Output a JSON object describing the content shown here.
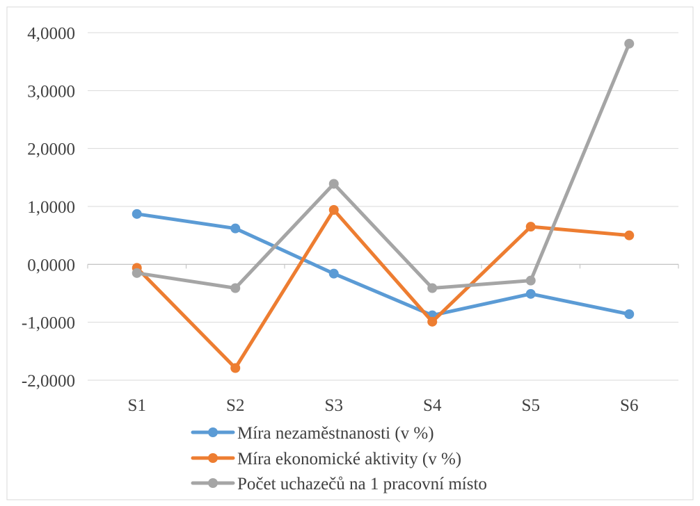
{
  "chart_data": {
    "type": "line",
    "categories": [
      "S1",
      "S2",
      "S3",
      "S4",
      "S5",
      "S6"
    ],
    "series": [
      {
        "name": "Míra nezaměstnanosti (v %)",
        "color": "#5B9BD5",
        "values": [
          0.87,
          0.62,
          -0.16,
          -0.88,
          -0.51,
          -0.86
        ]
      },
      {
        "name": "Míra ekonomické aktivity (v %)",
        "color": "#ED7D31",
        "values": [
          -0.06,
          -1.79,
          0.94,
          -0.99,
          0.65,
          0.5
        ]
      },
      {
        "name": "Počet uchazečů na 1 pracovní místo",
        "color": "#A5A5A5",
        "values": [
          -0.15,
          -0.41,
          1.39,
          -0.41,
          -0.28,
          3.81
        ]
      }
    ],
    "y_ticks": [
      "4,0000",
      "3,0000",
      "2,0000",
      "1,0000",
      "0,0000",
      "-1,0000",
      "-2,0000"
    ],
    "y_tick_values": [
      4,
      3,
      2,
      1,
      0,
      -1,
      -2
    ],
    "ylim": [
      -2,
      4
    ],
    "grid": true,
    "legend_position": "bottom",
    "title": "",
    "xlabel": "",
    "ylabel": ""
  }
}
